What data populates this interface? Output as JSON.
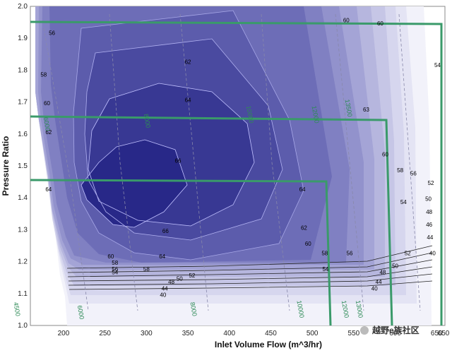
{
  "chart_data": {
    "type": "contour",
    "xlabel": "Inlet Volume Flow (m^3/hr)",
    "ylabel": "Pressure Ratio",
    "xlim": [
      160,
      660
    ],
    "ylim": [
      1.0,
      2.0
    ],
    "xticks": [
      200,
      250,
      300,
      350,
      400,
      450,
      500,
      550,
      600,
      650
    ],
    "yticks": [
      1.0,
      1.1,
      1.2,
      1.3,
      1.4,
      1.5,
      1.6,
      1.7,
      1.8,
      1.9,
      2.0
    ],
    "x_last_tick_label": "650",
    "fill_colors": [
      "#f2f2fa",
      "#e4e4f4",
      "#d6d6ee",
      "#c6c6e6",
      "#b6b6de",
      "#a4a4d6",
      "#9292cc",
      "#8080c2",
      "#6d6db7",
      "#5c5cac",
      "#4a4aa0",
      "#383893",
      "#282888"
    ],
    "contour_line_color": "#000000",
    "speed_line_color": "#2e8b57",
    "efficiency_labels": [
      {
        "text": "56",
        "x": 186,
        "y": 1.91
      },
      {
        "text": "58",
        "x": 176,
        "y": 1.78
      },
      {
        "text": "60",
        "x": 180,
        "y": 1.69
      },
      {
        "text": "62",
        "x": 182,
        "y": 1.6
      },
      {
        "text": "62",
        "x": 350,
        "y": 1.82
      },
      {
        "text": "64",
        "x": 350,
        "y": 1.7
      },
      {
        "text": "66",
        "x": 338,
        "y": 1.51
      },
      {
        "text": "66",
        "x": 323,
        "y": 1.29
      },
      {
        "text": "64",
        "x": 182,
        "y": 1.42
      },
      {
        "text": "64",
        "x": 488,
        "y": 1.42
      },
      {
        "text": "64",
        "x": 319,
        "y": 1.21
      },
      {
        "text": "62",
        "x": 490,
        "y": 1.3
      },
      {
        "text": "60",
        "x": 495,
        "y": 1.25
      },
      {
        "text": "58",
        "x": 515,
        "y": 1.22
      },
      {
        "text": "56",
        "x": 545,
        "y": 1.22
      },
      {
        "text": "52",
        "x": 615,
        "y": 1.22
      },
      {
        "text": "54",
        "x": 516,
        "y": 1.17
      },
      {
        "text": "50",
        "x": 600,
        "y": 1.18
      },
      {
        "text": "48",
        "x": 585,
        "y": 1.16
      },
      {
        "text": "44",
        "x": 580,
        "y": 1.13
      },
      {
        "text": "40",
        "x": 575,
        "y": 1.11
      },
      {
        "text": "60",
        "x": 541,
        "y": 1.95
      },
      {
        "text": "60",
        "x": 582,
        "y": 1.94
      },
      {
        "text": "63",
        "x": 565,
        "y": 1.67
      },
      {
        "text": "60",
        "x": 588,
        "y": 1.53
      },
      {
        "text": "58",
        "x": 606,
        "y": 1.48
      },
      {
        "text": "56",
        "x": 622,
        "y": 1.47
      },
      {
        "text": "54",
        "x": 610,
        "y": 1.38
      },
      {
        "text": "52",
        "x": 643,
        "y": 1.44
      },
      {
        "text": "50",
        "x": 640,
        "y": 1.39
      },
      {
        "text": "48",
        "x": 641,
        "y": 1.35
      },
      {
        "text": "46",
        "x": 641,
        "y": 1.31
      },
      {
        "text": "44",
        "x": 642,
        "y": 1.27
      },
      {
        "text": "40",
        "x": 645,
        "y": 1.22
      },
      {
        "text": "54",
        "x": 651,
        "y": 1.81
      },
      {
        "text": "60",
        "x": 257,
        "y": 1.21
      },
      {
        "text": "58",
        "x": 262,
        "y": 1.19
      },
      {
        "text": "56",
        "x": 262,
        "y": 1.17
      },
      {
        "text": "58",
        "x": 300,
        "y": 1.17
      },
      {
        "text": "54",
        "x": 262,
        "y": 1.16
      },
      {
        "text": "52",
        "x": 355,
        "y": 1.15
      },
      {
        "text": "50",
        "x": 340,
        "y": 1.14
      },
      {
        "text": "48",
        "x": 330,
        "y": 1.13
      },
      {
        "text": "44",
        "x": 322,
        "y": 1.11
      },
      {
        "text": "40",
        "x": 320,
        "y": 1.09
      }
    ],
    "speed_labels": [
      {
        "text": "4500",
        "x": 252,
        "y": 1.05
      },
      {
        "text": "6000",
        "x": 288,
        "y": 1.63
      },
      {
        "text": "6000",
        "x": 329,
        "y": 1.04
      },
      {
        "text": "8000",
        "x": 409,
        "y": 1.64
      },
      {
        "text": "8000",
        "x": 465,
        "y": 1.05
      },
      {
        "text": "10000",
        "x": 533,
        "y": 1.66
      },
      {
        "text": "10000",
        "x": 594,
        "y": 1.05
      },
      {
        "text": "12000",
        "x": 612,
        "y": 1.66
      },
      {
        "text": "12000",
        "x": 648,
        "y": 1.05
      },
      {
        "text": "13500",
        "x": 652,
        "y": 1.68
      },
      {
        "text": "13000",
        "x": 665,
        "y": 1.05
      }
    ],
    "watermark": "越野e族社区"
  }
}
